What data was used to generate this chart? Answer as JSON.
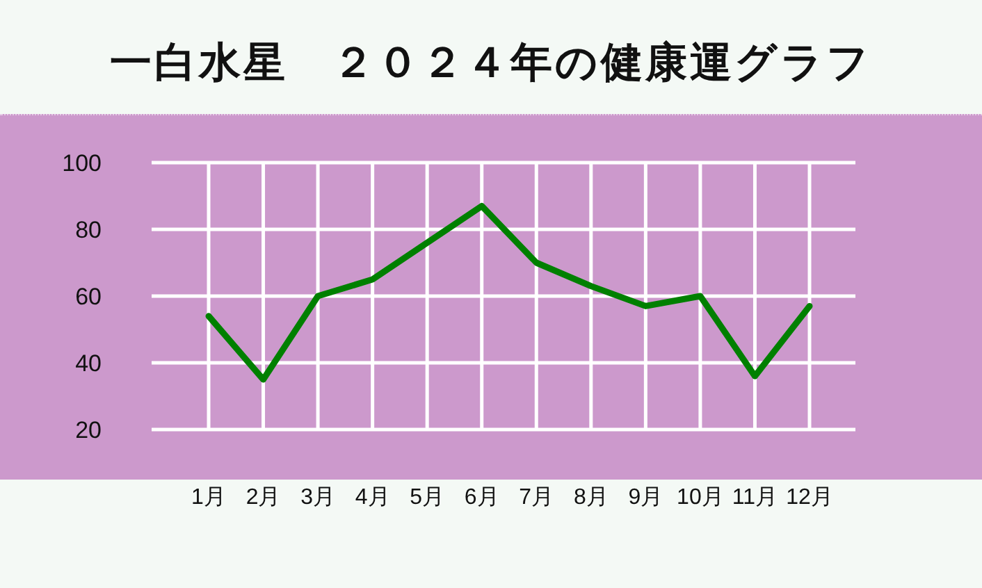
{
  "chart_data": {
    "type": "line",
    "title": "一白水星　２０２４年の健康運グラフ",
    "categories": [
      "1月",
      "2月",
      "3月",
      "4月",
      "5月",
      "6月",
      "7月",
      "8月",
      "9月",
      "10月",
      "11月",
      "12月"
    ],
    "series": [
      {
        "color": "#008000",
        "values": [
          54,
          35,
          60,
          65,
          76,
          87,
          70,
          63,
          57,
          60,
          36,
          57
        ]
      }
    ],
    "ylim": [
      20,
      100
    ],
    "yticks": [
      20,
      40,
      60,
      80,
      100
    ],
    "grid": true,
    "marker": "none",
    "line_style": "solid"
  }
}
